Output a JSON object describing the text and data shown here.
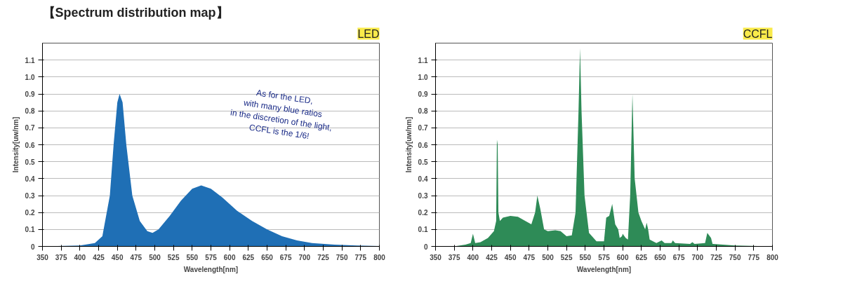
{
  "chart_data": [
    {
      "type": "area",
      "title": "LED",
      "xlabel": "Wavelength[nm]",
      "ylabel": "Intensity[uw/nm]",
      "annotations": [
        "【Spectrum distribution map】",
        "As for the LED,\nwith many blue ratios\nin the discretion of the light,\nCCFL is the 1/6!"
      ],
      "x": [
        350,
        400,
        420,
        430,
        440,
        445,
        450,
        453,
        457,
        462,
        470,
        480,
        490,
        497,
        505,
        520,
        535,
        550,
        562,
        575,
        590,
        610,
        630,
        650,
        670,
        690,
        710,
        740,
        770,
        800
      ],
      "series": [
        {
          "color": "#1f6fb5",
          "values": [
            0,
            0.005,
            0.02,
            0.06,
            0.3,
            0.6,
            0.85,
            0.9,
            0.85,
            0.6,
            0.3,
            0.15,
            0.09,
            0.08,
            0.1,
            0.18,
            0.27,
            0.34,
            0.36,
            0.34,
            0.29,
            0.21,
            0.15,
            0.1,
            0.06,
            0.035,
            0.02,
            0.01,
            0.005,
            0.002
          ]
        }
      ],
      "xlim": [
        350,
        800
      ],
      "ylim": [
        0,
        1.2
      ],
      "xticks": [
        350,
        375,
        400,
        425,
        450,
        475,
        500,
        525,
        550,
        575,
        600,
        625,
        650,
        675,
        700,
        725,
        750,
        775,
        800
      ],
      "yticks": [
        0,
        0.1,
        0.2,
        0.3,
        0.4,
        0.5,
        0.6,
        0.7,
        0.8,
        0.9,
        {
          "value": 1.0,
          "label": "1.0"
        },
        1.1
      ],
      "grid": "y"
    },
    {
      "type": "area",
      "title": "CCFL",
      "xlabel": "Wavelength[nm]",
      "ylabel": "Intensity[uw/nm]",
      "x": [
        375,
        390,
        397,
        400,
        403,
        410,
        420,
        428,
        431,
        432,
        433,
        434,
        436,
        440,
        450,
        460,
        470,
        478,
        483,
        486,
        490,
        495,
        500,
        510,
        517,
        525,
        532,
        537,
        541,
        543,
        545,
        549,
        555,
        565,
        575,
        578,
        582,
        586,
        590,
        594,
        596,
        599,
        600,
        604,
        607,
        610,
        613,
        616,
        621,
        625,
        630,
        632,
        634,
        636,
        645,
        652,
        656,
        665,
        667,
        670,
        690,
        693,
        696,
        710,
        713,
        718,
        720,
        750,
        800
      ],
      "series": [
        {
          "color": "#2e8b57",
          "values": [
            0,
            0.01,
            0.02,
            0.075,
            0.02,
            0.025,
            0.05,
            0.09,
            0.15,
            0.63,
            0.6,
            0.2,
            0.15,
            0.17,
            0.18,
            0.175,
            0.15,
            0.13,
            0.2,
            0.3,
            0.22,
            0.1,
            0.09,
            0.095,
            0.09,
            0.06,
            0.065,
            0.2,
            0.8,
            1.17,
            0.8,
            0.3,
            0.08,
            0.03,
            0.03,
            0.17,
            0.18,
            0.25,
            0.13,
            0.1,
            0.05,
            0.06,
            0.075,
            0.05,
            0.04,
            0.3,
            0.9,
            0.4,
            0.2,
            0.15,
            0.1,
            0.14,
            0.1,
            0.04,
            0.02,
            0.035,
            0.02,
            0.02,
            0.035,
            0.02,
            0.015,
            0.025,
            0.015,
            0.02,
            0.08,
            0.05,
            0.015,
            0.005,
            0
          ]
        }
      ],
      "xlim": [
        350,
        800
      ],
      "ylim": [
        0,
        1.2
      ],
      "xticks": [
        350,
        375,
        400,
        425,
        450,
        475,
        500,
        525,
        550,
        575,
        600,
        625,
        650,
        675,
        700,
        725,
        750,
        775,
        800
      ],
      "yticks": [
        0,
        0.1,
        0.2,
        0.3,
        0.4,
        0.5,
        0.6,
        0.7,
        0.8,
        0.9,
        {
          "value": 1.0,
          "label": "1.0"
        },
        1.1
      ],
      "grid": "y"
    }
  ]
}
